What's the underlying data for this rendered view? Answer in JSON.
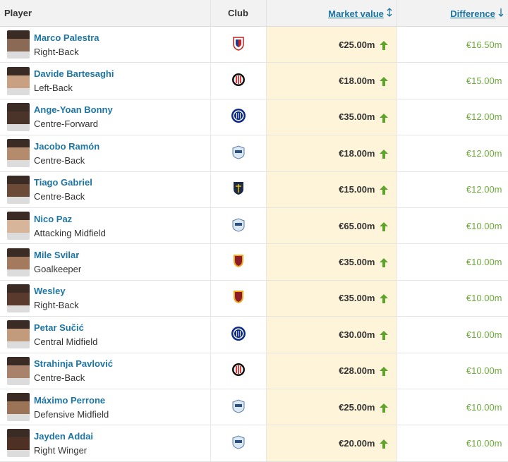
{
  "table": {
    "header": [
      "Player",
      "Club",
      "Market value",
      "Difference"
    ],
    "rows": [
      {
        "name": "Marco Palestra",
        "position": "Right-Back",
        "market_value": "€25.00m",
        "difference": "€16.50m"
      },
      {
        "name": "Davide Bartesaghi",
        "position": "Left-Back",
        "market_value": "€18.00m",
        "difference": "€15.00m"
      },
      {
        "name": "Ange-Yoan Bonny",
        "position": "Centre-Forward",
        "market_value": "€35.00m",
        "difference": "€12.00m"
      },
      {
        "name": "Jacobo Ramón",
        "position": "Centre-Back",
        "market_value": "€18.00m",
        "difference": "€12.00m"
      },
      {
        "name": "Tiago Gabriel",
        "position": "Centre-Back",
        "market_value": "€15.00m",
        "difference": "€12.00m"
      },
      {
        "name": "Nico Paz",
        "position": "Attacking Midfield",
        "market_value": "€65.00m",
        "difference": "€10.00m"
      },
      {
        "name": "Mile Svilar",
        "position": "Goalkeeper",
        "market_value": "€35.00m",
        "difference": "€10.00m"
      },
      {
        "name": "Wesley",
        "position": "Right-Back",
        "market_value": "€35.00m",
        "difference": "€10.00m"
      },
      {
        "name": "Petar Sučić",
        "position": "Central Midfield",
        "market_value": "€30.00m",
        "difference": "€10.00m"
      },
      {
        "name": "Strahinja Pavlović",
        "position": "Centre-Back",
        "market_value": "€28.00m",
        "difference": "€10.00m"
      },
      {
        "name": "Máximo Perrone",
        "position": "Defensive Midfield",
        "market_value": "€25.00m",
        "difference": "€10.00m"
      },
      {
        "name": "Jayden Addai",
        "position": "Right Winger",
        "market_value": "€20.00m",
        "difference": "€10.00m"
      }
    ]
  }
}
